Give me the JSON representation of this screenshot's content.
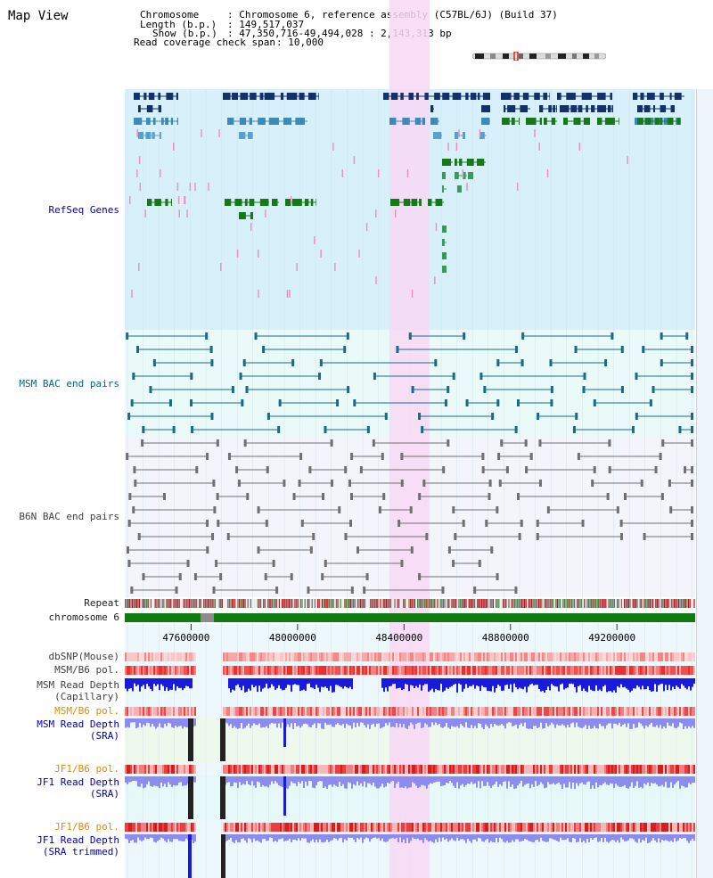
{
  "page_title": "Map View",
  "info": {
    "chromosome_label": "Chromosome",
    "chromosome_value": ": Chromosome 6, reference assembly (C57BL/6J) (Build 37)",
    "length_label": "Length (b.p.)",
    "length_value": ": 149,517,037",
    "show_label": "Show (b.p.)",
    "show_value": ": 47,350,716-49,494,028 : 2,143,313 bp",
    "coverage_label": "Read coverage check span",
    "coverage_value": ": 10,000"
  },
  "tracks": {
    "refseq": "RefSeq Genes",
    "msm_bac": "MSM BAC end pairs",
    "b6n_bac": "B6N BAC end pairs",
    "repeat": "Repeat",
    "chromosome": "chromosome 6",
    "dbsnp": "dbSNP(Mouse)",
    "msm_b6_pol_1": "MSM/B6 pol.",
    "msm_depth_cap_1": "MSM Read Depth",
    "msm_depth_cap_2": "(Capillary)",
    "msm_b6_pol_2": "MSM/B6 pol.",
    "msm_depth_sra_1": "MSM Read Depth",
    "msm_depth_sra_2": "(SRA)",
    "jf1_b6_pol_1": "JF1/B6 pol.",
    "jf1_depth_sra_1": "JF1 Read Depth",
    "jf1_depth_sra_2": "(SRA)",
    "jf1_b6_pol_2": "JF1/B6 pol.",
    "jf1_depth_trim_1": "JF1 Read Depth",
    "jf1_depth_trim_2": "(SRA trimmed)"
  },
  "axis": {
    "ticks": [
      {
        "pos": 47600000,
        "label": "47600000"
      },
      {
        "pos": 48000000,
        "label": "48000000"
      },
      {
        "pos": 48400000,
        "label": "48400000"
      },
      {
        "pos": 48800000,
        "label": "48800000"
      },
      {
        "pos": 49200000,
        "label": "49200000"
      }
    ],
    "start": 47350716,
    "end": 49494028
  },
  "colors": {
    "refseq_bg": "#d8f0fa",
    "msm_bg": "#eafaf8",
    "b6n_bg": "#f4f4fb",
    "highlight": "#f8d8f4",
    "gene_dark": "#14306a",
    "gene_mid": "#3c8ab8",
    "gene_light": "#5aa0cc",
    "gene_green": "#157a15",
    "gene_green_light": "#3a9a5a",
    "pink": "#f090c0",
    "msm_bac": "#1a6a8a",
    "b6n_bac": "#707070",
    "chromosome": "#0f7a0f",
    "depth_dark": "#1a1adc",
    "depth_light": "#8c8cf0",
    "label_blue": "#0000b0",
    "label_teal": "#006878",
    "label_gray": "#404040",
    "label_orange": "#e08c00"
  },
  "icons": {
    "chromosome_ideogram": "ideogram-icon"
  }
}
